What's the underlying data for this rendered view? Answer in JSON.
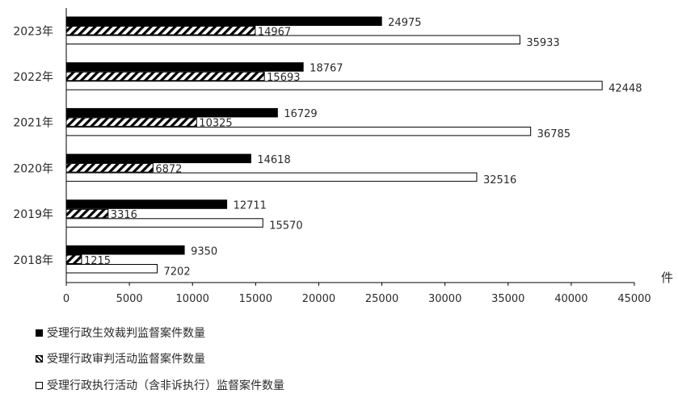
{
  "chart_data": {
    "type": "bar",
    "orientation": "horizontal",
    "categories": [
      "2023年",
      "2022年",
      "2021年",
      "2020年",
      "2019年",
      "2018年"
    ],
    "series": [
      {
        "name": "受理行政生效裁判监督案件数量",
        "values": [
          24975,
          18767,
          16729,
          14618,
          12711,
          9350
        ],
        "fill": "solid"
      },
      {
        "name": "受理行政审判活动监督案件数量",
        "values": [
          14967,
          15693,
          10325,
          6872,
          3316,
          1215
        ],
        "fill": "hatched"
      },
      {
        "name": "受理行政执行活动（含非诉执行）监督案件数量",
        "values": [
          35933,
          42448,
          36785,
          32516,
          15570,
          7202
        ],
        "fill": "empty"
      }
    ],
    "xticks": [
      0,
      5000,
      10000,
      15000,
      20000,
      25000,
      30000,
      35000,
      40000,
      45000
    ],
    "xlim": [
      0,
      45000
    ],
    "xunit": "件",
    "legend_position": "bottom",
    "grid": false
  },
  "legend": {
    "items": [
      {
        "label": "受理行政生效裁判监督案件数量"
      },
      {
        "label": "受理行政审判活动监督案件数量"
      },
      {
        "label": "受理行政执行活动（含非诉执行）监督案件数量"
      }
    ]
  },
  "colors": {
    "bar_fill": "#000000",
    "bar_stroke": "#000000",
    "text": "#2a2a2a"
  }
}
